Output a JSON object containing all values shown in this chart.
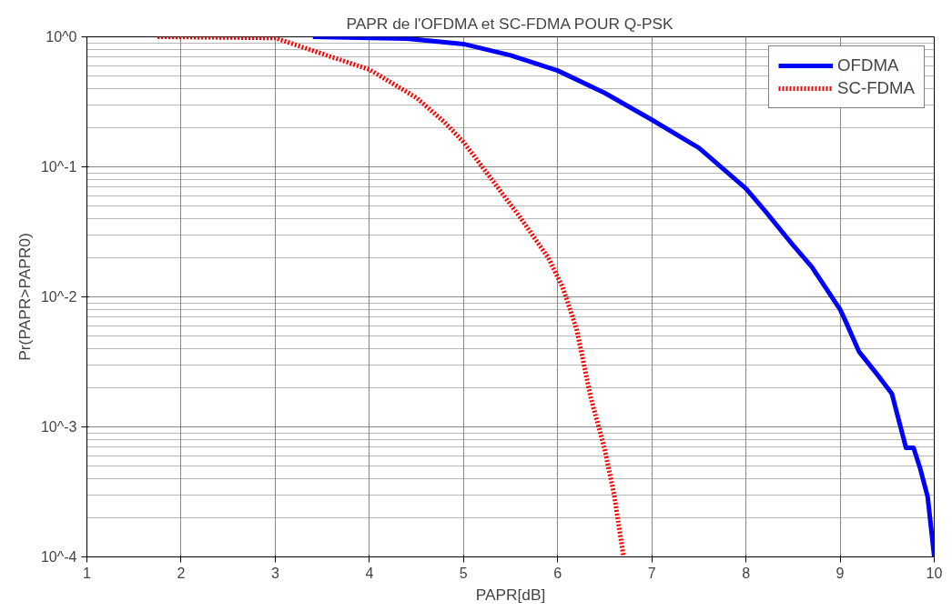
{
  "chart_data": {
    "type": "line",
    "title": "PAPR de l'OFDMA et SC-FDMA POUR Q-PSK",
    "xlabel": "PAPR[dB]",
    "ylabel": "Pr(PAPR>PAPR0)",
    "log": "y",
    "grid": true,
    "legend": "top right",
    "xlim": [
      1,
      10
    ],
    "xticks": [
      1,
      2,
      3,
      4,
      5,
      6,
      7,
      8,
      9,
      10
    ],
    "ylim": [
      0.0001,
      1
    ],
    "yticks": [
      {
        "value": 0.0001,
        "label": "10^-4"
      },
      {
        "value": 0.001,
        "label": "10^-3"
      },
      {
        "value": 0.01,
        "label": "10^-2"
      },
      {
        "value": 0.1,
        "label": "10^-1"
      },
      {
        "value": 1,
        "label": "10^0"
      }
    ],
    "series": [
      {
        "name": "OFDMA",
        "color": "#0000ff",
        "line_style": "solid",
        "x": [
          3.4,
          4.4,
          5,
          5.5,
          6,
          6.5,
          7,
          7.5,
          8,
          8.2,
          8.5,
          8.7,
          9,
          9.05,
          9.2,
          9.4,
          9.55,
          9.7,
          9.78,
          9.85,
          9.93,
          10
        ],
        "values": [
          1,
          0.97,
          0.88,
          0.72,
          0.55,
          0.37,
          0.23,
          0.14,
          0.068,
          0.046,
          0.025,
          0.017,
          0.008,
          0.0067,
          0.0038,
          0.0025,
          0.0018,
          0.00069,
          0.00069,
          0.00048,
          0.00029,
          0.0001
        ]
      },
      {
        "name": "SC-FDMA",
        "color": "#ff0000",
        "line_style": "dotted",
        "x": [
          1.75,
          3,
          3.5,
          4,
          4.5,
          4.8,
          5,
          5.3,
          5.6,
          5.9,
          6.05,
          6.2,
          6.35,
          6.5,
          6.6,
          6.7
        ],
        "values": [
          1,
          0.98,
          0.74,
          0.56,
          0.34,
          0.22,
          0.155,
          0.08,
          0.041,
          0.02,
          0.012,
          0.0057,
          0.0017,
          0.00067,
          0.0003,
          0.0001
        ]
      }
    ]
  }
}
